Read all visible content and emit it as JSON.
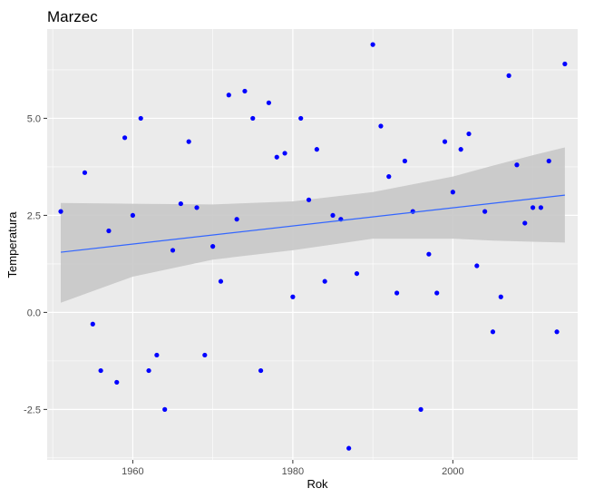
{
  "chart_data": {
    "type": "scatter",
    "title": "Marzec",
    "xlabel": "Rok",
    "ylabel": "Temperatura",
    "xlim": [
      1949.3,
      2015.6
    ],
    "ylim": [
      -3.8,
      7.3
    ],
    "x_ticks": [
      1960,
      1980,
      2000
    ],
    "x_tick_labels": [
      "1960",
      "1980",
      "2000"
    ],
    "y_ticks": [
      -2.5,
      0,
      2.5,
      5
    ],
    "y_tick_labels": [
      "-2.5",
      "0.0",
      "2.5",
      "5.0"
    ],
    "grid": true,
    "legend": "none",
    "colors": {
      "panel": "#ebebeb",
      "grid": "#ffffff",
      "points": "#0000ff",
      "trend": "#3366ff",
      "band": "#c8c8c8"
    },
    "points": [
      {
        "x": 1951,
        "y": 2.6
      },
      {
        "x": 1954,
        "y": 3.6
      },
      {
        "x": 1955,
        "y": -0.3
      },
      {
        "x": 1956,
        "y": -1.5
      },
      {
        "x": 1957,
        "y": 2.1
      },
      {
        "x": 1958,
        "y": -1.8
      },
      {
        "x": 1959,
        "y": 4.5
      },
      {
        "x": 1960,
        "y": 2.5
      },
      {
        "x": 1961,
        "y": 5.0
      },
      {
        "x": 1962,
        "y": -1.5
      },
      {
        "x": 1963,
        "y": -1.1
      },
      {
        "x": 1964,
        "y": -2.5
      },
      {
        "x": 1965,
        "y": 1.6
      },
      {
        "x": 1966,
        "y": 2.8
      },
      {
        "x": 1967,
        "y": 4.4
      },
      {
        "x": 1968,
        "y": 2.7
      },
      {
        "x": 1969,
        "y": -1.1
      },
      {
        "x": 1970,
        "y": 1.7
      },
      {
        "x": 1971,
        "y": 0.8
      },
      {
        "x": 1972,
        "y": 5.6
      },
      {
        "x": 1973,
        "y": 2.4
      },
      {
        "x": 1974,
        "y": 5.7
      },
      {
        "x": 1975,
        "y": 5.0
      },
      {
        "x": 1976,
        "y": -1.5
      },
      {
        "x": 1977,
        "y": 5.4
      },
      {
        "x": 1978,
        "y": 4.0
      },
      {
        "x": 1979,
        "y": 4.1
      },
      {
        "x": 1980,
        "y": 0.4
      },
      {
        "x": 1981,
        "y": 5.0
      },
      {
        "x": 1982,
        "y": 2.9
      },
      {
        "x": 1983,
        "y": 4.2
      },
      {
        "x": 1984,
        "y": 0.8
      },
      {
        "x": 1985,
        "y": 2.5
      },
      {
        "x": 1986,
        "y": 2.4
      },
      {
        "x": 1987,
        "y": -3.5
      },
      {
        "x": 1988,
        "y": 1.0
      },
      {
        "x": 1990,
        "y": 6.9
      },
      {
        "x": 1991,
        "y": 4.8
      },
      {
        "x": 1992,
        "y": 3.5
      },
      {
        "x": 1993,
        "y": 0.5
      },
      {
        "x": 1994,
        "y": 3.9
      },
      {
        "x": 1995,
        "y": 2.6
      },
      {
        "x": 1996,
        "y": -2.5
      },
      {
        "x": 1997,
        "y": 1.5
      },
      {
        "x": 1998,
        "y": 0.5
      },
      {
        "x": 1999,
        "y": 4.4
      },
      {
        "x": 2000,
        "y": 3.1
      },
      {
        "x": 2001,
        "y": 4.2
      },
      {
        "x": 2002,
        "y": 4.6
      },
      {
        "x": 2003,
        "y": 1.2
      },
      {
        "x": 2004,
        "y": 2.6
      },
      {
        "x": 2005,
        "y": -0.5
      },
      {
        "x": 2006,
        "y": 0.4
      },
      {
        "x": 2007,
        "y": 6.1
      },
      {
        "x": 2008,
        "y": 3.8
      },
      {
        "x": 2009,
        "y": 2.3
      },
      {
        "x": 2010,
        "y": 2.7
      },
      {
        "x": 2011,
        "y": 2.7
      },
      {
        "x": 2012,
        "y": 3.9
      },
      {
        "x": 2013,
        "y": -0.5
      },
      {
        "x": 2014,
        "y": 6.4
      }
    ],
    "trend": {
      "x": [
        1951,
        2014
      ],
      "y": [
        1.55,
        3.02
      ]
    },
    "confidence_band": {
      "x": [
        1951,
        1960,
        1970,
        1980,
        1990,
        2000,
        2005,
        2010,
        2014
      ],
      "upper": [
        2.82,
        2.8,
        2.78,
        2.86,
        3.1,
        3.5,
        3.78,
        4.05,
        4.25
      ],
      "lower": [
        0.25,
        0.92,
        1.36,
        1.6,
        1.9,
        1.9,
        1.85,
        1.82,
        1.8
      ]
    }
  }
}
